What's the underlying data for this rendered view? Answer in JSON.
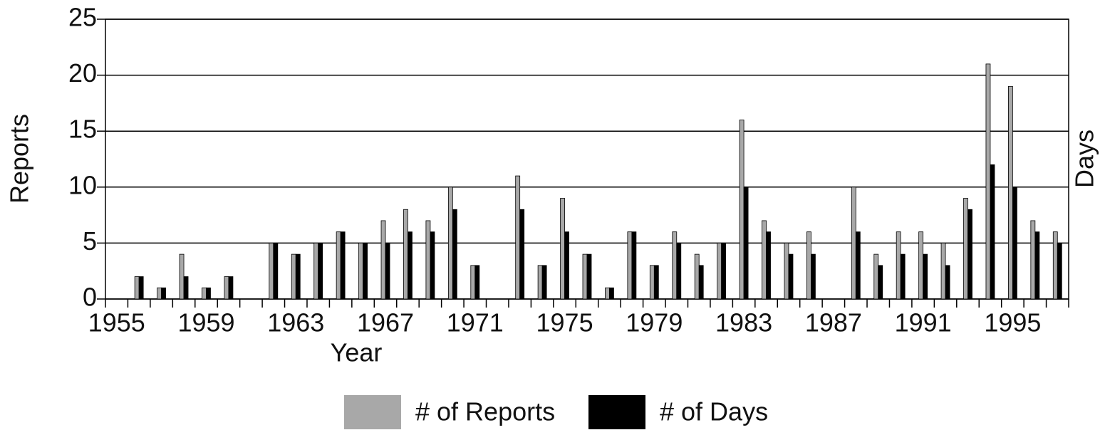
{
  "chart_data": {
    "type": "bar",
    "x_label": "Year",
    "y_label": "Reports",
    "y2_label": "Days",
    "categories": [
      "1955",
      null,
      null,
      null,
      "1959",
      null,
      null,
      null,
      "1963",
      null,
      null,
      null,
      "1967",
      null,
      null,
      null,
      "1971",
      null,
      null,
      null,
      "1975",
      null,
      null,
      null,
      "1979",
      null,
      null,
      null,
      "1983",
      null,
      null,
      null,
      "1987",
      null,
      null,
      null,
      "1991",
      null,
      null,
      null,
      "1995",
      null,
      null
    ],
    "series": [
      {
        "name": "# of Reports",
        "color": "#a8a8a8",
        "values": [
          0,
          2,
          1,
          4,
          1,
          2,
          0,
          5,
          4,
          5,
          6,
          5,
          7,
          8,
          7,
          10,
          3,
          0,
          11,
          3,
          9,
          4,
          1,
          6,
          3,
          6,
          4,
          5,
          16,
          7,
          5,
          6,
          0,
          10,
          4,
          6,
          6,
          5,
          9,
          21,
          19,
          7,
          6
        ]
      },
      {
        "name": "# of Days",
        "color": "#000000",
        "values": [
          0,
          2,
          1,
          2,
          1,
          2,
          0,
          5,
          4,
          5,
          6,
          5,
          5,
          6,
          6,
          8,
          3,
          0,
          8,
          3,
          6,
          4,
          1,
          6,
          3,
          5,
          3,
          5,
          10,
          6,
          4,
          4,
          0,
          6,
          3,
          4,
          4,
          3,
          8,
          12,
          10,
          6,
          5
        ]
      }
    ],
    "ylim": [
      0,
      25
    ],
    "yticks": [
      0,
      5,
      10,
      15,
      20,
      25
    ],
    "grid": true
  }
}
